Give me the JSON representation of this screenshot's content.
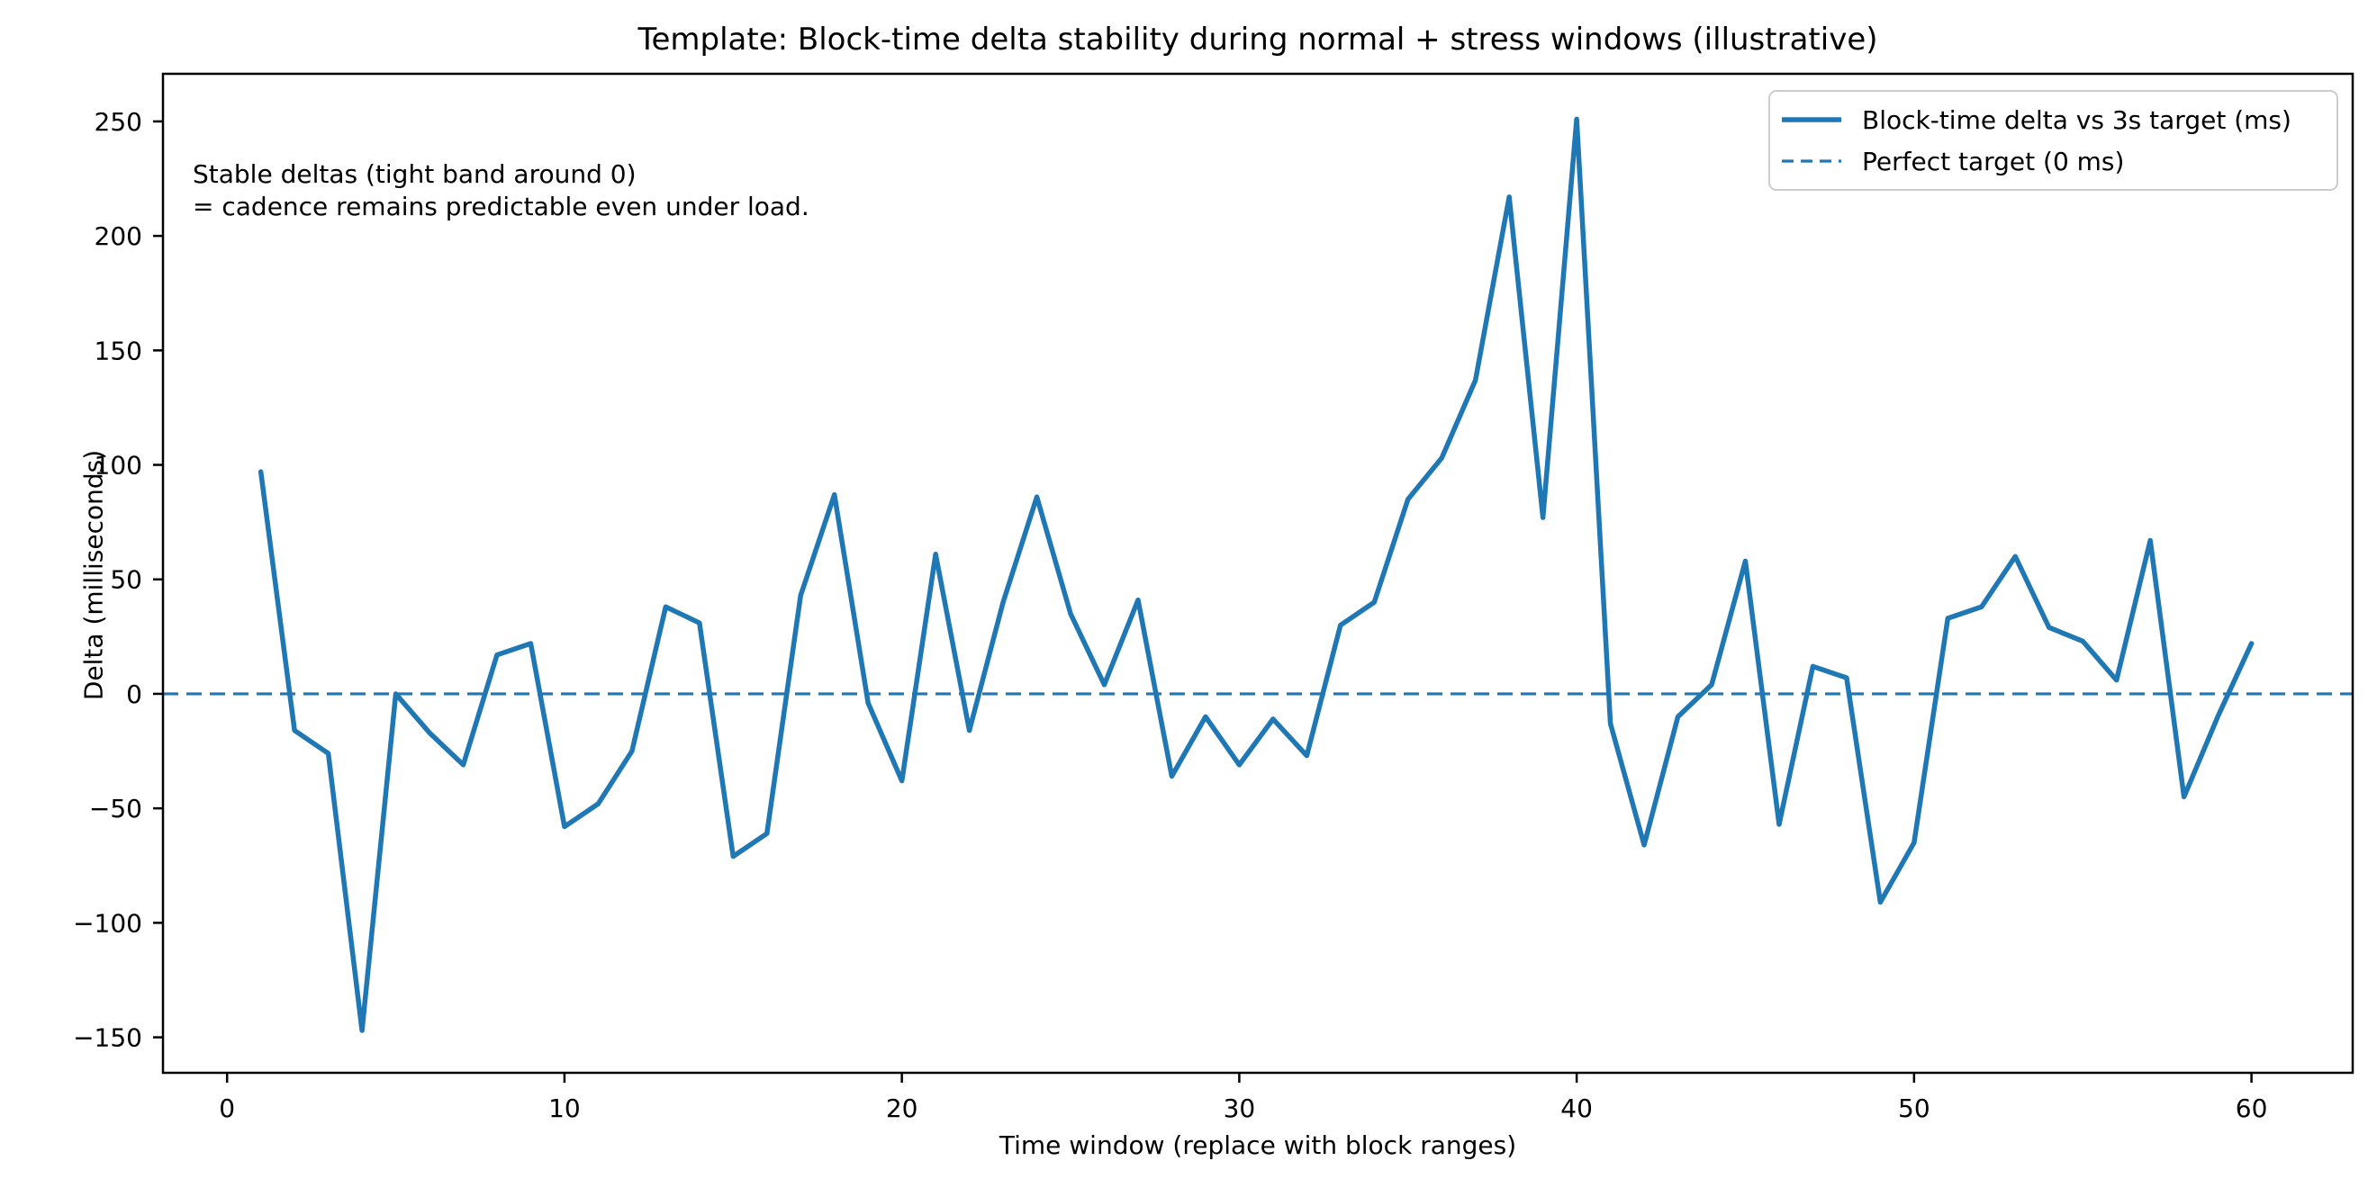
{
  "chart_data": {
    "type": "line",
    "title": "Template: Block-time delta stability during normal + stress windows (illustrative)",
    "xlabel": "Time window (replace with block ranges)",
    "ylabel": "Delta (milliseconds)",
    "annotation": {
      "line1": "Stable deltas (tight band around 0)",
      "line2": "= cadence remains predictable even under load."
    },
    "legend": [
      {
        "label": "Block-time delta vs 3s target (ms)",
        "style": "solid"
      },
      {
        "label": "Perfect target (0 ms)",
        "style": "dashed"
      }
    ],
    "legend_position": "upper right",
    "grid": false,
    "line_color": "#1f77b4",
    "target_line_color": "#1f77b4",
    "axis_color": "#000000",
    "background_color": "#ffffff",
    "x_ticks": [
      0,
      10,
      20,
      30,
      40,
      50,
      60
    ],
    "y_ticks": [
      250,
      200,
      150,
      100,
      50,
      0,
      -50,
      -100,
      -150
    ],
    "xlim": [
      -1.9,
      63.0
    ],
    "ylim": [
      -165.5,
      270.8
    ],
    "zero_line": 0,
    "x": [
      1,
      2,
      3,
      4,
      5,
      6,
      7,
      8,
      9,
      10,
      11,
      12,
      13,
      14,
      15,
      16,
      17,
      18,
      19,
      20,
      21,
      22,
      23,
      24,
      25,
      26,
      27,
      28,
      29,
      30,
      31,
      32,
      33,
      34,
      35,
      36,
      37,
      38,
      39,
      40,
      41,
      42,
      43,
      44,
      45,
      46,
      47,
      48,
      49,
      50,
      51,
      52,
      53,
      54,
      55,
      56,
      57,
      58,
      59,
      60
    ],
    "y": [
      97,
      -16,
      -26,
      -147,
      0,
      -17,
      -31,
      17,
      22,
      -58,
      -48,
      -25,
      38,
      31,
      -71,
      -61,
      43,
      87,
      -4,
      -38,
      61,
      -16,
      40,
      86,
      35,
      4,
      41,
      -36,
      -10,
      -31,
      -11,
      -27,
      30,
      40,
      85,
      103,
      137,
      217,
      77,
      251,
      -13,
      -66,
      -10,
      4,
      58,
      -57,
      12,
      7,
      -91,
      -65,
      33,
      38,
      60,
      29,
      23,
      6,
      67,
      -45,
      -10,
      22
    ]
  }
}
